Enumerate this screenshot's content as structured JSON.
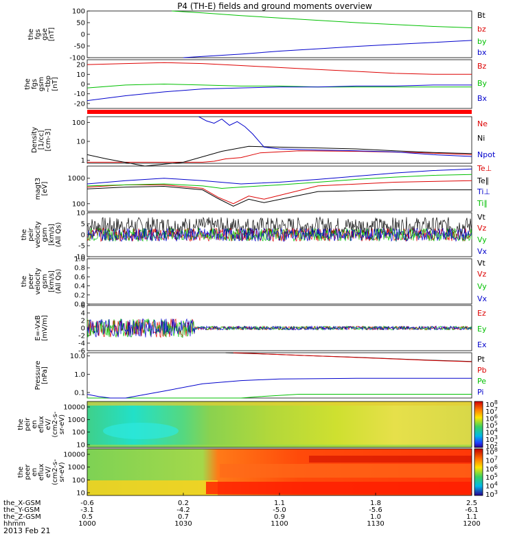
{
  "chart_data": {
    "type": "line",
    "title": "P4 (TH-E) fields and ground moments overview",
    "date": "2013 Feb 21",
    "panels": [
      {
        "id": "fgs-gse",
        "ylabel": [
          "the",
          "fgs",
          "gse",
          "[nT]"
        ],
        "ylim": [
          -100,
          100
        ],
        "ticks": [
          "100",
          "50",
          "0",
          "-50",
          "-100"
        ],
        "tick_values": [
          100,
          50,
          0,
          -50,
          -100
        ],
        "series": [
          {
            "name": "Bt",
            "color": "#000000",
            "x": [],
            "y": []
          },
          {
            "name": "bz",
            "color": "#dd0000",
            "x": [],
            "y": []
          },
          {
            "name": "by",
            "color": "#00c000",
            "x": [
              0.22,
              0.3,
              0.4,
              0.5,
              0.6,
              0.7,
              0.8,
              0.9,
              1.0
            ],
            "y": [
              100,
              92,
              80,
              70,
              60,
              50,
              42,
              34,
              28
            ]
          },
          {
            "name": "bx",
            "color": "#0000cc",
            "x": [
              0.25,
              0.3,
              0.4,
              0.5,
              0.6,
              0.7,
              0.8,
              0.9,
              1.0
            ],
            "y": [
              -100,
              -95,
              -85,
              -72,
              -62,
              -52,
              -43,
              -35,
              -26
            ]
          }
        ]
      },
      {
        "id": "fgs-gsm",
        "ylabel": [
          "the",
          "fgs",
          "gsm",
          "~tbp",
          "[nT]"
        ],
        "ylim": [
          -25,
          25
        ],
        "ticks": [
          "20",
          "10",
          "0",
          "-10",
          "-20"
        ],
        "tick_values": [
          20,
          10,
          0,
          -10,
          -20
        ],
        "series": [
          {
            "name": "Bz",
            "color": "#dd0000",
            "x": [
              0,
              0.1,
              0.2,
              0.3,
              0.4,
              0.5,
              0.6,
              0.7,
              0.8,
              0.9,
              1.0
            ],
            "y": [
              20,
              21,
              22,
              21,
              19,
              17,
              15,
              13,
              11,
              10,
              10
            ]
          },
          {
            "name": "By",
            "color": "#00c000",
            "x": [
              0,
              0.1,
              0.2,
              0.3,
              0.4,
              0.5,
              0.6,
              0.7,
              0.8,
              0.9,
              1.0
            ],
            "y": [
              -4,
              -1,
              0,
              -1,
              -2,
              -2,
              -3,
              -3,
              -3,
              -3,
              -3
            ]
          },
          {
            "name": "Bx",
            "color": "#0000cc",
            "x": [
              0,
              0.1,
              0.2,
              0.3,
              0.4,
              0.5,
              0.6,
              0.7,
              0.8,
              0.9,
              1.0
            ],
            "y": [
              -17,
              -12,
              -8,
              -5,
              -4,
              -3,
              -3,
              -2,
              -2,
              -1,
              -1
            ]
          }
        ]
      },
      {
        "id": "density",
        "ylabel": [
          "Density",
          "[1/cc]",
          "[cm-3]"
        ],
        "log": true,
        "ylim": [
          0.7,
          200
        ],
        "ticks": [
          "100",
          "10",
          "1"
        ],
        "tick_values": [
          100,
          10,
          1
        ],
        "series": [
          {
            "name": "Ne",
            "color": "#dd0000",
            "x": [
              0,
              0.2,
              0.3,
              0.33,
              0.36,
              0.4,
              0.45,
              0.55,
              0.7,
              0.85,
              1.0
            ],
            "y": [
              0.8,
              0.8,
              0.8,
              0.9,
              1.2,
              1.4,
              2.5,
              3.2,
              3.0,
              2.6,
              2.0
            ]
          },
          {
            "name": "Ni",
            "color": "#000000",
            "x": [
              0,
              0.05,
              0.15,
              0.25,
              0.35,
              0.42,
              0.5,
              0.6,
              0.7,
              0.8,
              0.9,
              1.0
            ],
            "y": [
              2,
              1.2,
              0.5,
              0.8,
              3,
              5.5,
              5,
              4.5,
              4,
              3.2,
              2.6,
              2.3
            ]
          },
          {
            "name": "Npot",
            "color": "#0000cc",
            "x": [
              0.29,
              0.31,
              0.33,
              0.35,
              0.37,
              0.39,
              0.41,
              0.43,
              0.46,
              0.5,
              0.6,
              0.7,
              0.8,
              0.9,
              1.0
            ],
            "y": [
              200,
              120,
              90,
              150,
              70,
              110,
              60,
              25,
              5,
              4,
              3.5,
              3.2,
              2.8,
              2.0,
              1.6
            ]
          }
        ]
      },
      {
        "id": "temperature",
        "ylabel": [
          "magt3",
          "[eV]"
        ],
        "log": true,
        "ylim": [
          50,
          3000
        ],
        "ticks": [
          "1000",
          "100"
        ],
        "tick_values": [
          1000,
          100
        ],
        "series": [
          {
            "name": "Te⊥",
            "color": "#dd0000",
            "x": [
              0,
              0.1,
              0.2,
              0.3,
              0.34,
              0.38,
              0.42,
              0.46,
              0.6,
              0.8,
              1.0
            ],
            "y": [
              450,
              550,
              550,
              400,
              180,
              100,
              200,
              150,
              500,
              700,
              800
            ]
          },
          {
            "name": "Te∥",
            "color": "#000000",
            "x": [
              0,
              0.1,
              0.2,
              0.3,
              0.34,
              0.38,
              0.42,
              0.46,
              0.6,
              0.8,
              1.0
            ],
            "y": [
              380,
              450,
              480,
              350,
              160,
              80,
              150,
              110,
              300,
              350,
              350
            ]
          },
          {
            "name": "Ti⊥",
            "color": "#0000cc",
            "x": [
              0,
              0.1,
              0.2,
              0.3,
              0.4,
              0.5,
              0.6,
              0.7,
              0.8,
              0.9,
              1.0
            ],
            "y": [
              600,
              800,
              1000,
              800,
              600,
              700,
              900,
              1200,
              1600,
              2000,
              2300
            ]
          },
          {
            "name": "Ti∥",
            "color": "#00c000",
            "x": [
              0,
              0.1,
              0.2,
              0.3,
              0.35,
              0.4,
              0.5,
              0.6,
              0.7,
              0.8,
              0.9,
              1.0
            ],
            "y": [
              500,
              550,
              600,
              500,
              400,
              450,
              550,
              700,
              900,
              1100,
              1300,
              1400
            ]
          }
        ]
      },
      {
        "id": "peir-velocity",
        "ylabel": [
          "the",
          "peir",
          "velocity",
          "gsm",
          "[km/s]",
          "(All Qs)"
        ],
        "ylim": [
          -10,
          10
        ],
        "ticks": [
          "10",
          "5",
          "0",
          "-5",
          "-10"
        ],
        "tick_values": [
          10,
          5,
          0,
          -5,
          -10
        ],
        "series": [
          {
            "name": "Vt",
            "color": "#000000",
            "noise_center": 4,
            "noise_amp": 4
          },
          {
            "name": "Vz",
            "color": "#dd0000",
            "noise_center": 0,
            "noise_amp": 3
          },
          {
            "name": "Vy",
            "color": "#00c000",
            "noise_center": 0,
            "noise_amp": 3
          },
          {
            "name": "Vx",
            "color": "#0000cc",
            "noise_center": 0,
            "noise_amp": 3
          }
        ]
      },
      {
        "id": "peer-velocity",
        "ylabel": [
          "the",
          "peer",
          "velocity",
          "gsm",
          "[km/s]",
          "(All Qs)"
        ],
        "ylim": [
          0,
          1
        ],
        "ticks": [
          "1.0",
          "0.8",
          "0.6",
          "0.4",
          "0.2",
          "0.0"
        ],
        "tick_values": [
          1.0,
          0.8,
          0.6,
          0.4,
          0.2,
          0.0
        ],
        "series": [
          {
            "name": "Vt",
            "color": "#000000"
          },
          {
            "name": "Vz",
            "color": "#dd0000"
          },
          {
            "name": "Vy",
            "color": "#00c000"
          },
          {
            "name": "Vx",
            "color": "#0000cc"
          }
        ]
      },
      {
        "id": "efield",
        "ylabel": [
          "E=-VxB",
          "[mV/m]"
        ],
        "ylim": [
          -6,
          6
        ],
        "ticks": [
          "6",
          "4",
          "2",
          "0",
          "-2",
          "-4",
          "-6"
        ],
        "tick_values": [
          6,
          4,
          2,
          0,
          -2,
          -4,
          -6
        ],
        "series": [
          {
            "name": "Ez",
            "color": "#dd0000",
            "noise_center": 0,
            "noise_amp": 2.5
          },
          {
            "name": "Ey",
            "color": "#00c000",
            "noise_center": 0,
            "noise_amp": 2.5
          },
          {
            "name": "Ex",
            "color": "#0000cc",
            "noise_center": 0,
            "noise_amp": 2.5
          }
        ]
      },
      {
        "id": "pressure",
        "ylabel": [
          "Pressure",
          "[nPa]"
        ],
        "log": true,
        "ylim": [
          0.05,
          15
        ],
        "ticks": [
          "10.0",
          "1.0",
          "0.1"
        ],
        "tick_values": [
          10,
          1,
          0.1
        ],
        "series": [
          {
            "name": "Pt",
            "color": "#000000",
            "x": [
              0.36,
              0.5,
              0.6,
              0.7,
              0.8,
              0.9,
              1.0
            ],
            "y": [
              15,
              12,
              10,
              8.5,
              7.0,
              5.8,
              5.0
            ]
          },
          {
            "name": "Pb",
            "color": "#dd0000",
            "x": [
              0.38,
              0.5,
              0.6,
              0.7,
              0.8,
              0.9,
              1.0
            ],
            "y": [
              15,
              12,
              10,
              8.3,
              6.8,
              5.6,
              4.8
            ]
          },
          {
            "name": "Pe",
            "color": "#00c000",
            "x": [
              0,
              0.1,
              0.2,
              0.3,
              0.4,
              0.45,
              0.55,
              0.7,
              1.0
            ],
            "y": [
              0.05,
              0.05,
              0.05,
              0.05,
              0.05,
              0.06,
              0.08,
              0.08,
              0.08
            ]
          },
          {
            "name": "Pi",
            "color": "#0000cc",
            "x": [
              0,
              0.03,
              0.06,
              0.1,
              0.2,
              0.3,
              0.4,
              0.5,
              0.7,
              1.0
            ],
            "y": [
              0.08,
              0.06,
              0.05,
              0.05,
              0.12,
              0.3,
              0.45,
              0.55,
              0.6,
              0.6
            ]
          }
        ]
      },
      {
        "id": "peir-spec",
        "type": "heatmap",
        "ylabel": [
          "the",
          "peir",
          "en",
          "eflux",
          "eV/",
          "(cm2-s-",
          "sr-eV)"
        ],
        "ticks": [
          "10000",
          "1000",
          "100",
          "10"
        ],
        "colorbar_ticks": [
          "10^8",
          "10^7",
          "10^6",
          "10^5",
          "10^4",
          "10^3",
          "10^2"
        ]
      },
      {
        "id": "peer-spec",
        "type": "heatmap",
        "ylabel": [
          "the",
          "peer",
          "en",
          "eflux",
          "eV/",
          "(cm2-s-",
          "sr-eV)"
        ],
        "ticks": [
          "10000",
          "1000",
          "100",
          "10"
        ],
        "colorbar_ticks": [
          "10^8",
          "10^7",
          "10^6",
          "10^5",
          "10^4",
          "10^3"
        ]
      }
    ],
    "xaxis": {
      "rows": [
        {
          "label": "the_X-GSM",
          "values": [
            "-0.6",
            "0.2",
            "1.1",
            "1.8",
            "2.5"
          ]
        },
        {
          "label": "the_Y-GSM",
          "values": [
            "-3.1",
            "-4.2",
            "-5.0",
            "-5.6",
            "-6.1"
          ]
        },
        {
          "label": "the_Z-GSM",
          "values": [
            "0.5",
            "0.7",
            "0.9",
            "1.0",
            "1.1"
          ]
        },
        {
          "label": "hhmm",
          "values": [
            "1000",
            "1030",
            "1100",
            "1130",
            "1200"
          ]
        }
      ]
    }
  }
}
